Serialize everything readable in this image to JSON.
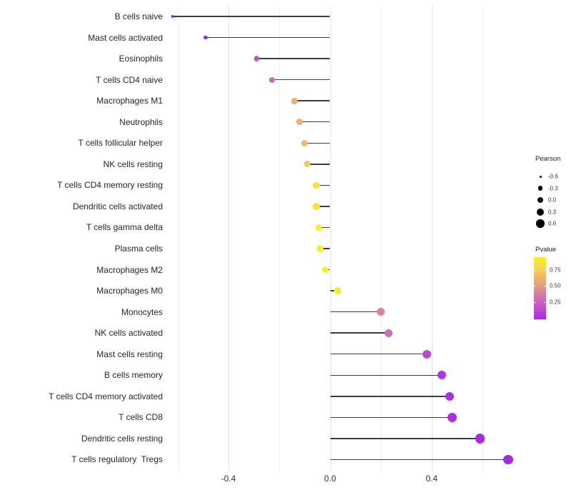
{
  "chart_data": {
    "type": "scatter",
    "variant": "lollipop",
    "title": "",
    "xlabel": "",
    "ylabel": "",
    "xlim": [
      -0.63,
      0.77
    ],
    "grid": "vertical-only",
    "categories": [
      "B cells naive",
      "Mast cells activated",
      "Eosinophils",
      "T cells CD4 naive",
      "Macrophages M1",
      "Neutrophils",
      "T cells follicular helper",
      "NK cells resting",
      "T cells CD4 memory resting",
      "Dendritic cells activated",
      "T cells gamma delta",
      "Plasma cells",
      "Macrophages M2",
      "Macrophages M0",
      "Monocytes",
      "NK cells activated",
      "Mast cells resting",
      "B cells memory",
      "T cells CD4 memory activated",
      "T cells CD8",
      "Dendritic cells resting",
      "T cells regulatory  Tregs"
    ],
    "points": [
      {
        "label": "B cells naive",
        "pearson": -0.62,
        "color": "#8326D8"
      },
      {
        "label": "Mast cells activated",
        "pearson": -0.49,
        "color": "#9232DE"
      },
      {
        "label": "Eosinophils",
        "pearson": -0.29,
        "color": "#C355BE"
      },
      {
        "label": "T cells CD4 naive",
        "pearson": -0.23,
        "color": "#CE6BB4"
      },
      {
        "label": "Macrophages M1",
        "pearson": -0.14,
        "color": "#EFAC76"
      },
      {
        "label": "Neutrophils",
        "pearson": -0.12,
        "color": "#EFB171"
      },
      {
        "label": "T cells follicular helper",
        "pearson": -0.1,
        "color": "#F0BB67"
      },
      {
        "label": "NK cells resting",
        "pearson": -0.09,
        "color": "#F0C45E"
      },
      {
        "label": "T cells CD4 memory resting",
        "pearson": -0.055,
        "color": "#F5E532"
      },
      {
        "label": "Dendritic cells activated",
        "pearson": -0.055,
        "color": "#F6E82E"
      },
      {
        "label": "T cells gamma delta",
        "pearson": -0.045,
        "color": "#F7EB2A"
      },
      {
        "label": "Plasma cells",
        "pearson": -0.04,
        "color": "#F8EC28"
      },
      {
        "label": "Macrophages M2",
        "pearson": -0.02,
        "color": "#F9EE25"
      },
      {
        "label": "Macrophages M0",
        "pearson": 0.03,
        "color": "#F8E926"
      },
      {
        "label": "Monocytes",
        "pearson": 0.2,
        "color": "#DC7FA2"
      },
      {
        "label": "NK cells activated",
        "pearson": 0.23,
        "color": "#D06DB2"
      },
      {
        "label": "Mast cells resting",
        "pearson": 0.38,
        "color": "#BC48D4"
      },
      {
        "label": "B cells memory",
        "pearson": 0.44,
        "color": "#AE35DF"
      },
      {
        "label": "T cells CD4 memory activated",
        "pearson": 0.47,
        "color": "#AA30E0"
      },
      {
        "label": "T cells CD8",
        "pearson": 0.48,
        "color": "#A92FE0"
      },
      {
        "label": "Dendritic cells resting",
        "pearson": 0.59,
        "color": "#A52CE2"
      },
      {
        "label": "T cells regulatory  Tregs",
        "pearson": 0.7,
        "color": "#A32BE3"
      }
    ],
    "x_axis": {
      "ticks": [
        {
          "value": -0.4,
          "label": "-0.4"
        },
        {
          "value": 0.0,
          "label": "0.0"
        },
        {
          "value": 0.4,
          "label": "0.4"
        }
      ],
      "gridlines_major": [
        -0.4,
        0.0,
        0.4
      ],
      "gridlines_minor": [
        -0.6,
        -0.2,
        0.2,
        0.6
      ]
    },
    "legend": {
      "position": "right",
      "size": {
        "title": "Pearson",
        "entries": [
          {
            "label": "-0.6",
            "diameter": 3
          },
          {
            "label": "-0.3",
            "diameter": 6.5
          },
          {
            "label": "0.0",
            "diameter": 8.5
          },
          {
            "label": "0.3",
            "diameter": 10
          },
          {
            "label": "0.6",
            "diameter": 11.5
          }
        ],
        "dot_color": "#000000"
      },
      "color": {
        "title": "Pvalue",
        "ticks": [
          {
            "label": "0.75",
            "pos": 0.793
          },
          {
            "label": "0.50",
            "pos": 0.536
          },
          {
            "label": "0.25",
            "pos": 0.28
          }
        ],
        "gradient_stops": [
          {
            "pos": 0.0,
            "color": "#A92BE2"
          },
          {
            "pos": 0.28,
            "color": "#CA63C6"
          },
          {
            "pos": 0.54,
            "color": "#E59A80"
          },
          {
            "pos": 0.79,
            "color": "#F4CE58"
          },
          {
            "pos": 1.0,
            "color": "#F9F225"
          }
        ]
      }
    },
    "colors": {
      "stem": "#3c3c3c",
      "grid_major": "#e2e2e2",
      "grid_minor": "#f1f1f1",
      "axis_text": "#323232",
      "background": "#ffffff"
    }
  }
}
